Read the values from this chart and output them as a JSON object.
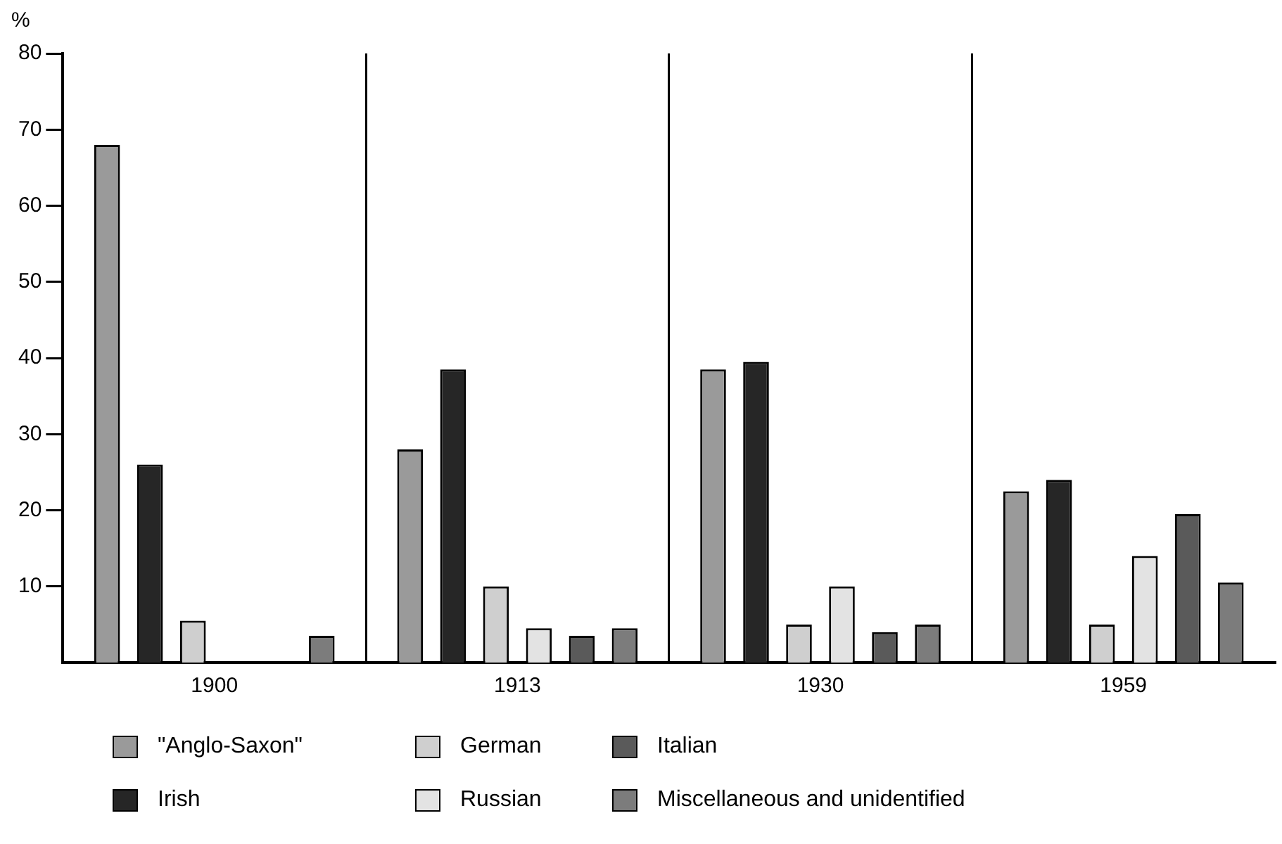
{
  "chart_data": {
    "type": "bar",
    "ylabel": "%",
    "categories": [
      "1900",
      "1913",
      "1930",
      "1959"
    ],
    "series": [
      {
        "name": "\"Anglo-Saxon\"",
        "color": "#9a9a9a",
        "values": [
          68,
          28,
          38.5,
          22.5
        ]
      },
      {
        "name": "Irish",
        "color": "#262626",
        "values": [
          26,
          38.5,
          39.5,
          24
        ]
      },
      {
        "name": "German",
        "color": "#cfcfcf",
        "values": [
          5.5,
          10,
          5,
          5
        ]
      },
      {
        "name": "Russian",
        "color": "#e3e3e3",
        "values": [
          null,
          4.5,
          10,
          14
        ]
      },
      {
        "name": "Italian",
        "color": "#5a5a5a",
        "values": [
          null,
          3.5,
          4,
          19.5
        ]
      },
      {
        "name": "Miscellaneous and unidentified",
        "color": "#7c7c7c",
        "values": [
          3.5,
          4.5,
          5,
          10.5
        ]
      }
    ],
    "ylim": [
      0,
      80
    ],
    "yticks": [
      10,
      20,
      30,
      40,
      50,
      60,
      70,
      80
    ],
    "grid": "x",
    "legend": "bottom"
  }
}
